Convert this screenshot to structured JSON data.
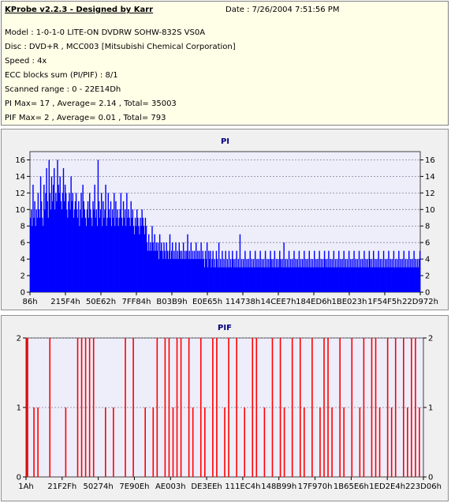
{
  "header": {
    "title": "KProbe v2.2.3 - Designed by Karr",
    "date": "Date : 7/26/2004 7:51:56 PM",
    "lines": [
      "Model : 1-0-1-0 LITE-ON DVDRW SOHW-832S  VS0A",
      "Disc : DVD+R , MCC003 [Mitsubishi Chemical Corporation]",
      "Speed : 4x",
      "ECC blocks sum (PI/PIF) : 8/1",
      "Scanned range : 0 - 22E14Dh",
      "PI Max= 17 , Average= 2.14 , Total= 35003",
      "PIF Max= 2 , Average= 0.01 , Total= 793"
    ]
  },
  "chart_data": [
    {
      "type": "bar",
      "title": "PI",
      "ylim": [
        0,
        17
      ],
      "yticks": [
        0,
        2,
        4,
        6,
        8,
        10,
        12,
        14,
        16
      ],
      "xtick_labels": [
        "86h",
        "215F4h",
        "50E62h",
        "7FF84h",
        "B03B9h",
        "E0E65h",
        "114738h",
        "14CEE7h",
        "184ED6h",
        "1BE023h",
        "1F54F5h",
        "22D972h"
      ],
      "color": "#0000ff",
      "grid": true,
      "values": [
        9,
        10,
        8,
        13,
        9,
        11,
        8,
        10,
        9,
        12,
        10,
        9,
        14,
        11,
        9,
        8,
        13,
        10,
        12,
        15,
        11,
        9,
        16,
        12,
        10,
        14,
        11,
        13,
        15,
        10,
        12,
        11,
        16,
        13,
        12,
        14,
        11,
        10,
        12,
        15,
        11,
        13,
        12,
        10,
        9,
        11,
        12,
        10,
        14,
        11,
        12,
        9,
        10,
        11,
        12,
        10,
        9,
        11,
        8,
        10,
        12,
        9,
        13,
        11,
        10,
        9,
        8,
        10,
        11,
        9,
        12,
        10,
        9,
        8,
        11,
        10,
        13,
        9,
        10,
        8,
        16,
        11,
        9,
        10,
        12,
        8,
        11,
        9,
        10,
        13,
        8,
        9,
        12,
        10,
        9,
        11,
        8,
        10,
        9,
        12,
        8,
        11,
        9,
        10,
        8,
        9,
        10,
        12,
        9,
        8,
        11,
        9,
        10,
        8,
        12,
        9,
        10,
        9,
        8,
        11,
        9,
        10,
        8,
        7,
        9,
        8,
        10,
        9,
        8,
        7,
        9,
        8,
        10,
        9,
        8,
        7,
        9,
        8,
        6,
        5,
        7,
        5,
        6,
        5,
        8,
        6,
        5,
        7,
        5,
        6,
        5,
        6,
        4,
        7,
        5,
        6,
        5,
        4,
        6,
        5,
        4,
        6,
        5,
        4,
        5,
        7,
        4,
        5,
        6,
        4,
        5,
        4,
        6,
        4,
        5,
        4,
        6,
        5,
        4,
        5,
        4,
        6,
        4,
        5,
        4,
        5,
        7,
        4,
        5,
        4,
        6,
        4,
        5,
        4,
        5,
        4,
        6,
        4,
        5,
        4,
        5,
        4,
        6,
        4,
        5,
        4,
        3,
        5,
        4,
        6,
        3,
        5,
        4,
        5,
        3,
        4,
        5,
        3,
        4,
        3,
        5,
        4,
        3,
        6,
        3,
        4,
        3,
        5,
        3,
        4,
        3,
        5,
        3,
        4,
        3,
        5,
        3,
        4,
        3,
        5,
        4,
        3,
        4,
        3,
        5,
        3,
        4,
        3,
        7,
        3,
        4,
        3,
        4,
        3,
        5,
        3,
        4,
        3,
        4,
        3,
        5,
        3,
        4,
        3,
        4,
        3,
        5,
        3,
        4,
        3,
        4,
        3,
        5,
        3,
        4,
        3,
        4,
        3,
        5,
        3,
        4,
        3,
        4,
        3,
        5,
        4,
        3,
        4,
        3,
        5,
        3,
        4,
        3,
        4,
        3,
        5,
        4,
        3,
        4,
        3,
        6,
        3,
        4,
        3,
        4,
        3,
        5,
        3,
        4,
        3,
        4,
        3,
        5,
        3,
        4,
        3,
        4,
        3,
        5,
        3,
        4,
        3,
        4,
        3,
        5,
        3,
        4,
        3,
        4,
        3,
        5,
        3,
        4,
        3,
        4,
        3,
        5,
        3,
        4,
        3,
        4,
        3,
        5,
        3,
        4,
        3,
        4,
        3,
        5,
        4,
        3,
        4,
        3,
        5,
        3,
        4,
        3,
        4,
        3,
        5,
        3,
        4,
        3,
        4,
        3,
        5,
        3,
        4,
        3,
        4,
        3,
        5,
        3,
        4,
        3,
        4,
        3,
        5,
        3,
        4,
        3,
        4,
        3,
        5,
        3,
        4,
        3,
        4,
        3,
        5,
        3,
        4,
        3,
        4,
        3,
        5,
        3,
        4,
        3,
        4,
        3,
        5,
        4,
        3,
        4,
        3,
        5,
        3,
        4,
        3,
        4,
        3,
        5,
        3,
        4,
        3,
        4,
        3,
        5,
        3,
        4,
        3,
        4,
        3,
        5,
        3,
        4,
        3,
        4,
        3,
        5,
        3,
        4,
        3,
        4,
        3,
        5,
        3,
        4,
        3,
        4,
        3,
        5,
        3,
        4,
        3,
        4,
        3,
        5,
        3,
        4,
        3,
        4,
        3,
        5,
        3,
        4,
        3,
        4,
        3,
        4,
        5
      ]
    },
    {
      "type": "bar",
      "title": "PIF",
      "ylim": [
        0,
        2
      ],
      "yticks": [
        0,
        1,
        2
      ],
      "xtick_labels": [
        "1Ah",
        "21F2Fh",
        "50274h",
        "7E90Eh",
        "AE003h",
        "DE3EEh",
        "111EC4h",
        "148B99h",
        "17F970h",
        "1B65E6h",
        "1ED2E4h",
        "223D06h"
      ],
      "color": "#ff0000",
      "grid": true,
      "points": [
        [
          0.002,
          2
        ],
        [
          0.004,
          2
        ],
        [
          0.02,
          1
        ],
        [
          0.03,
          1
        ],
        [
          0.06,
          2
        ],
        [
          0.1,
          1
        ],
        [
          0.13,
          2
        ],
        [
          0.14,
          2
        ],
        [
          0.15,
          2
        ],
        [
          0.16,
          2
        ],
        [
          0.17,
          2
        ],
        [
          0.2,
          1
        ],
        [
          0.22,
          1
        ],
        [
          0.25,
          2
        ],
        [
          0.27,
          2
        ],
        [
          0.3,
          1
        ],
        [
          0.32,
          1
        ],
        [
          0.33,
          2
        ],
        [
          0.35,
          2
        ],
        [
          0.36,
          2
        ],
        [
          0.37,
          1
        ],
        [
          0.38,
          2
        ],
        [
          0.39,
          2
        ],
        [
          0.41,
          2
        ],
        [
          0.42,
          1
        ],
        [
          0.44,
          2
        ],
        [
          0.45,
          1
        ],
        [
          0.47,
          2
        ],
        [
          0.48,
          2
        ],
        [
          0.5,
          1
        ],
        [
          0.51,
          2
        ],
        [
          0.53,
          2
        ],
        [
          0.55,
          1
        ],
        [
          0.57,
          2
        ],
        [
          0.58,
          2
        ],
        [
          0.6,
          1
        ],
        [
          0.62,
          2
        ],
        [
          0.64,
          2
        ],
        [
          0.65,
          1
        ],
        [
          0.67,
          2
        ],
        [
          0.69,
          2
        ],
        [
          0.7,
          1
        ],
        [
          0.72,
          2
        ],
        [
          0.74,
          1
        ],
        [
          0.75,
          2
        ],
        [
          0.76,
          2
        ],
        [
          0.77,
          1
        ],
        [
          0.79,
          2
        ],
        [
          0.8,
          1
        ],
        [
          0.82,
          2
        ],
        [
          0.84,
          1
        ],
        [
          0.85,
          2
        ],
        [
          0.87,
          2
        ],
        [
          0.88,
          2
        ],
        [
          0.89,
          1
        ],
        [
          0.91,
          2
        ],
        [
          0.92,
          1
        ],
        [
          0.93,
          2
        ],
        [
          0.95,
          2
        ],
        [
          0.96,
          1
        ],
        [
          0.97,
          2
        ],
        [
          0.98,
          2
        ],
        [
          0.99,
          1
        ]
      ]
    }
  ]
}
